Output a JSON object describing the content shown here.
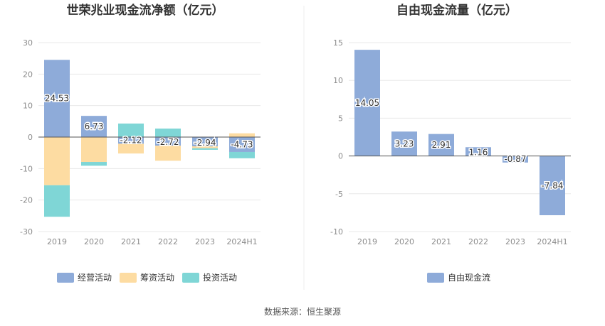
{
  "chart_data": [
    {
      "type": "bar",
      "stacked": true,
      "title": "世荣兆业现金流净额（亿元）",
      "categories": [
        "2019",
        "2020",
        "2021",
        "2022",
        "2023",
        "2024H1"
      ],
      "ylim": [
        -30,
        30
      ],
      "yticks": [
        -30,
        -20,
        -10,
        0,
        10,
        20,
        30
      ],
      "grid": true,
      "legend_position": "bottom",
      "series": [
        {
          "name": "经营活动",
          "color": "#8eabd9",
          "values": [
            24.53,
            6.73,
            -2.12,
            -2.72,
            -2.94,
            -4.73
          ],
          "labels": [
            "24.53",
            "6.73",
            "-2.12",
            "-2.72",
            "-2.94",
            "-4.73"
          ]
        },
        {
          "name": "筹资活动",
          "color": "#fddca2",
          "values": [
            -15.3,
            -7.9,
            -3.1,
            -4.8,
            -0.6,
            1.2
          ]
        },
        {
          "name": "投资活动",
          "color": "#7fd6d6",
          "values": [
            -10.0,
            -1.2,
            4.3,
            2.7,
            -0.5,
            -2.0
          ]
        }
      ]
    },
    {
      "type": "bar",
      "title": "自由现金流量（亿元）",
      "categories": [
        "2019",
        "2020",
        "2021",
        "2022",
        "2023",
        "2024H1"
      ],
      "ylim": [
        -10,
        15
      ],
      "yticks": [
        -10,
        -5,
        0,
        5,
        10,
        15
      ],
      "grid": true,
      "legend_position": "bottom",
      "series": [
        {
          "name": "自由现金流",
          "color": "#8eabd9",
          "values": [
            14.05,
            3.23,
            2.91,
            1.16,
            -0.87,
            -7.84
          ],
          "labels": [
            "14.05",
            "3.23",
            "2.91",
            "1.16",
            "-0.87",
            "-7.84"
          ]
        }
      ]
    }
  ],
  "footer": {
    "source": "数据来源：恒生聚源"
  }
}
